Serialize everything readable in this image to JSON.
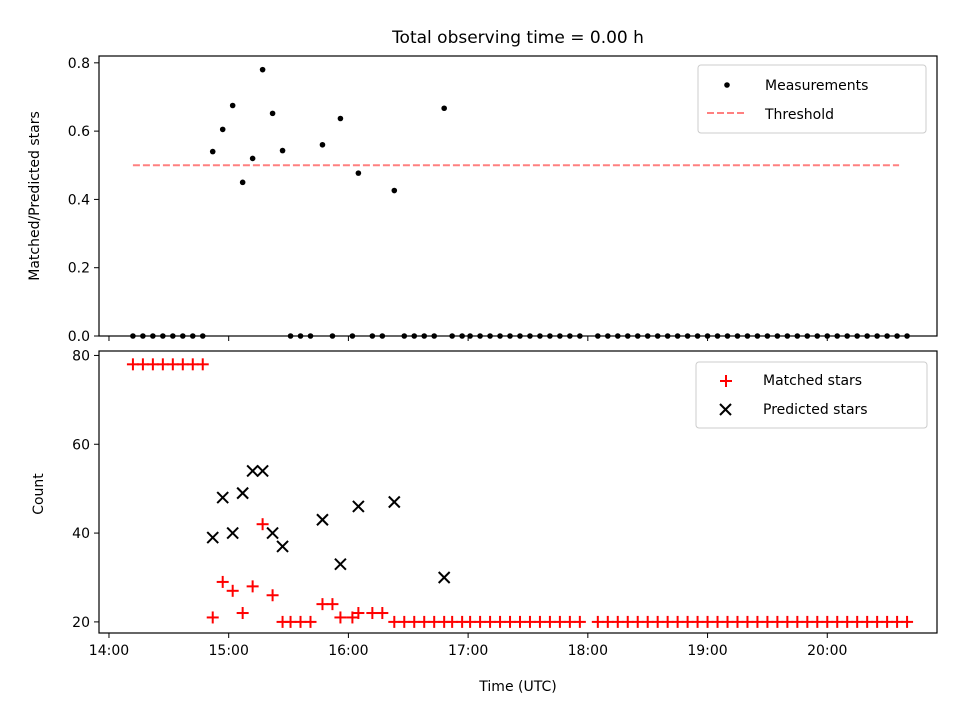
{
  "title": "Total observing time = 0.00 h",
  "chart_data": [
    {
      "type": "scatter",
      "ylabel": "Matched/Predicted stars",
      "ylim": [
        0,
        0.82
      ],
      "yticks": [
        0.0,
        0.2,
        0.4,
        0.6,
        0.8
      ],
      "ytick_labels": [
        "0.0",
        "0.2",
        "0.4",
        "0.6",
        "0.8"
      ],
      "legend_position": "top-right",
      "series": [
        {
          "name": "Measurements",
          "color": "#000000",
          "marker": "dot",
          "points": [
            [
              "14:12",
              0
            ],
            [
              "14:17",
              0
            ],
            [
              "14:22",
              0
            ],
            [
              "14:27",
              0
            ],
            [
              "14:32",
              0
            ],
            [
              "14:37",
              0
            ],
            [
              "14:42",
              0
            ],
            [
              "14:47",
              0
            ],
            [
              "14:52",
              0.54
            ],
            [
              "14:57",
              0.605
            ],
            [
              "15:02",
              0.675
            ],
            [
              "15:07",
              0.45
            ],
            [
              "15:12",
              0.52
            ],
            [
              "15:17",
              0.78
            ],
            [
              "15:22",
              0.652
            ],
            [
              "15:27",
              0.543
            ],
            [
              "15:31",
              0
            ],
            [
              "15:36",
              0
            ],
            [
              "15:41",
              0
            ],
            [
              "15:47",
              0.56
            ],
            [
              "15:52",
              0
            ],
            [
              "15:56",
              0.637
            ],
            [
              "16:02",
              0
            ],
            [
              "16:05",
              0.477
            ],
            [
              "16:12",
              0
            ],
            [
              "16:17",
              0
            ],
            [
              "16:23",
              0.426
            ],
            [
              "16:28",
              0
            ],
            [
              "16:33",
              0
            ],
            [
              "16:38",
              0
            ],
            [
              "16:43",
              0
            ],
            [
              "16:48",
              0.667
            ],
            [
              "16:52",
              0
            ],
            [
              "16:57",
              0
            ],
            [
              "17:01",
              0
            ],
            [
              "17:06",
              0
            ],
            [
              "17:11",
              0
            ],
            [
              "17:16",
              0
            ],
            [
              "17:21",
              0
            ],
            [
              "17:26",
              0
            ],
            [
              "17:31",
              0
            ],
            [
              "17:36",
              0
            ],
            [
              "17:41",
              0
            ],
            [
              "17:46",
              0
            ],
            [
              "17:51",
              0
            ],
            [
              "17:56",
              0
            ],
            [
              "18:05",
              0
            ],
            [
              "18:10",
              0
            ],
            [
              "18:15",
              0
            ],
            [
              "18:20",
              0
            ],
            [
              "18:25",
              0
            ],
            [
              "18:30",
              0
            ],
            [
              "18:35",
              0
            ],
            [
              "18:40",
              0
            ],
            [
              "18:45",
              0
            ],
            [
              "18:50",
              0
            ],
            [
              "18:55",
              0
            ],
            [
              "19:00",
              0
            ],
            [
              "19:05",
              0
            ],
            [
              "19:10",
              0
            ],
            [
              "19:15",
              0
            ],
            [
              "19:20",
              0
            ],
            [
              "19:25",
              0
            ],
            [
              "19:30",
              0
            ],
            [
              "19:35",
              0
            ],
            [
              "19:40",
              0
            ],
            [
              "19:45",
              0
            ],
            [
              "19:50",
              0
            ],
            [
              "19:55",
              0
            ],
            [
              "20:00",
              0
            ],
            [
              "20:05",
              0
            ],
            [
              "20:10",
              0
            ],
            [
              "20:15",
              0
            ],
            [
              "20:20",
              0
            ],
            [
              "20:25",
              0
            ],
            [
              "20:30",
              0
            ],
            [
              "20:35",
              0
            ],
            [
              "20:40",
              0
            ]
          ]
        },
        {
          "name": "Threshold",
          "color": "#ff8080",
          "style": "dashed",
          "x": [
            "14:12",
            "20:36"
          ],
          "y": [
            0.5,
            0.5
          ]
        }
      ]
    },
    {
      "type": "scatter",
      "xlabel": "Time (UTC)",
      "ylabel": "Count",
      "ylim": [
        17.5,
        81
      ],
      "xlim": [
        "13:55",
        "20:55"
      ],
      "yticks": [
        20,
        40,
        60,
        80
      ],
      "ytick_labels": [
        "20",
        "40",
        "60",
        "80"
      ],
      "xticks": [
        "14:00",
        "15:00",
        "16:00",
        "17:00",
        "18:00",
        "19:00",
        "20:00"
      ],
      "legend_position": "top-right",
      "series": [
        {
          "name": "Matched stars",
          "color": "#ff0000",
          "marker": "plus",
          "points": [
            [
              "14:12",
              78
            ],
            [
              "14:17",
              78
            ],
            [
              "14:22",
              78
            ],
            [
              "14:27",
              78
            ],
            [
              "14:32",
              78
            ],
            [
              "14:37",
              78
            ],
            [
              "14:42",
              78
            ],
            [
              "14:47",
              78
            ],
            [
              "14:52",
              21
            ],
            [
              "14:57",
              29
            ],
            [
              "15:02",
              27
            ],
            [
              "15:07",
              22
            ],
            [
              "15:12",
              28
            ],
            [
              "15:17",
              42
            ],
            [
              "15:22",
              26
            ],
            [
              "15:27",
              20
            ],
            [
              "15:31",
              20
            ],
            [
              "15:36",
              20
            ],
            [
              "15:41",
              20
            ],
            [
              "15:47",
              24
            ],
            [
              "15:52",
              24
            ],
            [
              "15:56",
              21
            ],
            [
              "16:02",
              21
            ],
            [
              "16:05",
              22
            ],
            [
              "16:12",
              22
            ],
            [
              "16:17",
              22
            ],
            [
              "16:23",
              20
            ],
            [
              "16:28",
              20
            ],
            [
              "16:33",
              20
            ],
            [
              "16:38",
              20
            ],
            [
              "16:43",
              20
            ],
            [
              "16:48",
              20
            ],
            [
              "16:52",
              20
            ],
            [
              "16:57",
              20
            ],
            [
              "17:01",
              20
            ],
            [
              "17:06",
              20
            ],
            [
              "17:11",
              20
            ],
            [
              "17:16",
              20
            ],
            [
              "17:21",
              20
            ],
            [
              "17:26",
              20
            ],
            [
              "17:31",
              20
            ],
            [
              "17:36",
              20
            ],
            [
              "17:41",
              20
            ],
            [
              "17:46",
              20
            ],
            [
              "17:51",
              20
            ],
            [
              "17:56",
              20
            ],
            [
              "18:05",
              20
            ],
            [
              "18:10",
              20
            ],
            [
              "18:15",
              20
            ],
            [
              "18:20",
              20
            ],
            [
              "18:25",
              20
            ],
            [
              "18:30",
              20
            ],
            [
              "18:35",
              20
            ],
            [
              "18:40",
              20
            ],
            [
              "18:45",
              20
            ],
            [
              "18:50",
              20
            ],
            [
              "18:55",
              20
            ],
            [
              "19:00",
              20
            ],
            [
              "19:05",
              20
            ],
            [
              "19:10",
              20
            ],
            [
              "19:15",
              20
            ],
            [
              "19:20",
              20
            ],
            [
              "19:25",
              20
            ],
            [
              "19:30",
              20
            ],
            [
              "19:35",
              20
            ],
            [
              "19:40",
              20
            ],
            [
              "19:45",
              20
            ],
            [
              "19:50",
              20
            ],
            [
              "19:55",
              20
            ],
            [
              "20:00",
              20
            ],
            [
              "20:05",
              20
            ],
            [
              "20:10",
              20
            ],
            [
              "20:15",
              20
            ],
            [
              "20:20",
              20
            ],
            [
              "20:25",
              20
            ],
            [
              "20:30",
              20
            ],
            [
              "20:35",
              20
            ],
            [
              "20:40",
              20
            ]
          ]
        },
        {
          "name": "Predicted stars",
          "color": "#000000",
          "marker": "x",
          "points": [
            [
              "14:52",
              39
            ],
            [
              "14:57",
              48
            ],
            [
              "15:02",
              40
            ],
            [
              "15:07",
              49
            ],
            [
              "15:12",
              54
            ],
            [
              "15:17",
              54
            ],
            [
              "15:22",
              40
            ],
            [
              "15:27",
              37
            ],
            [
              "15:47",
              43
            ],
            [
              "15:56",
              33
            ],
            [
              "16:05",
              46
            ],
            [
              "16:23",
              47
            ],
            [
              "16:48",
              30
            ]
          ]
        }
      ]
    }
  ]
}
